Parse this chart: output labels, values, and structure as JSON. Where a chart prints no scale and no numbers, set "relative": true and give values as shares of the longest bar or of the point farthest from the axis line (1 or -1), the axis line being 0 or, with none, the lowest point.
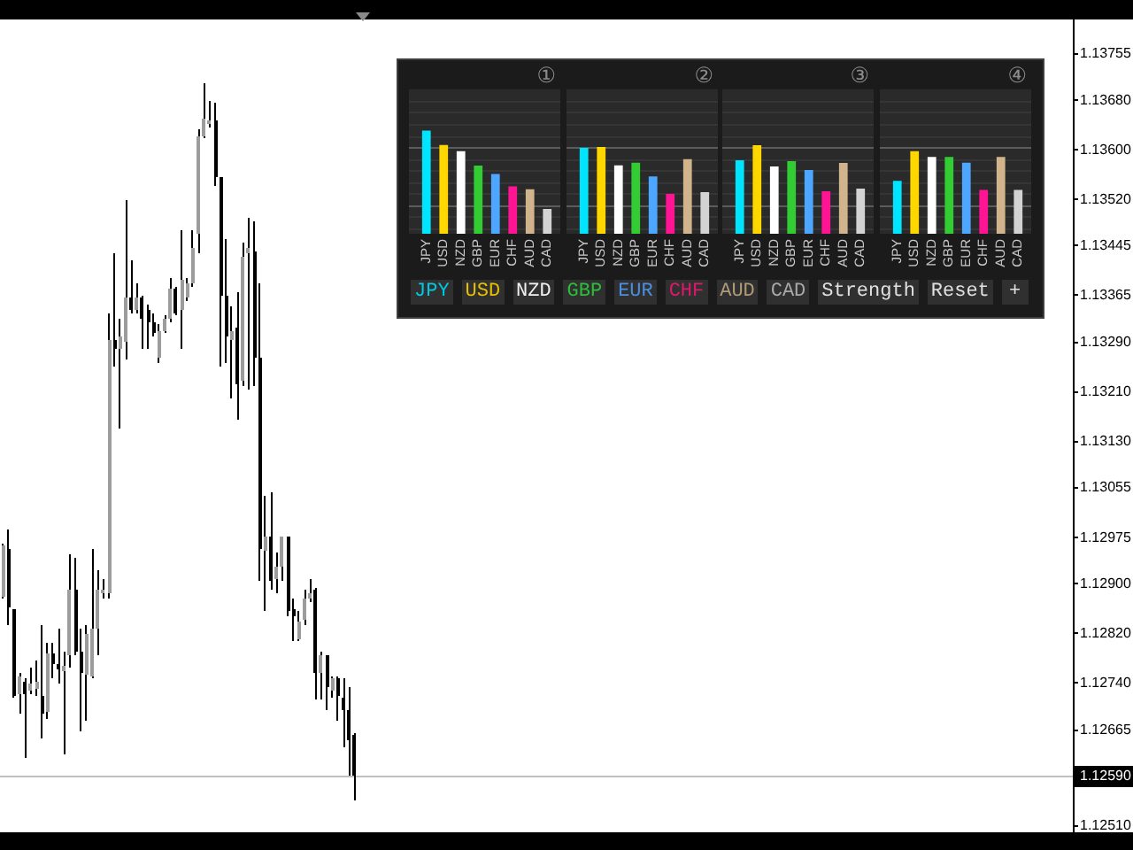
{
  "chart_data": [
    {
      "type": "candlestick",
      "categories": [
        null,
        null,
        null,
        null,
        null,
        null,
        null,
        null,
        null,
        null,
        null,
        null,
        null,
        null,
        null,
        null,
        null,
        null,
        null,
        null,
        null,
        null,
        null,
        null,
        null,
        null,
        null,
        null,
        null,
        null,
        null,
        null,
        null,
        null,
        null,
        null,
        null,
        null,
        null,
        null,
        null,
        null,
        null,
        null,
        null,
        null,
        null,
        null,
        null,
        null,
        null,
        null,
        null,
        null,
        null,
        null,
        null,
        null,
        null,
        null,
        null,
        null,
        null,
        null,
        null,
        null,
        null,
        null,
        null,
        null,
        null,
        null,
        null,
        null,
        null,
        null,
        null,
        null,
        null,
        null,
        null,
        null,
        null,
        null,
        null,
        null,
        null,
        null,
        null,
        null,
        null,
        null,
        null,
        null,
        null,
        null,
        null,
        null,
        null,
        null,
        null,
        null,
        null,
        null,
        null,
        null,
        null,
        null,
        null,
        null,
        null,
        null,
        null,
        null,
        null,
        null,
        null,
        null,
        null,
        null,
        null,
        null,
        null,
        null,
        null,
        null,
        null,
        null,
        null,
        null,
        null,
        null,
        null,
        null,
        null,
        null,
        null,
        null,
        null,
        null,
        null,
        null,
        null,
        null,
        null,
        null,
        null,
        null,
        null,
        null,
        null,
        null,
        null,
        null,
        null,
        null,
        null,
        null,
        null,
        null,
        null,
        null,
        null,
        null,
        null,
        null,
        null,
        null,
        null,
        null,
        null,
        null,
        null,
        null,
        null,
        null,
        null,
        null,
        null,
        null,
        null,
        null,
        null,
        null,
        null,
        null,
        null,
        null,
        null,
        null,
        null,
        null
      ],
      "ohlc": [
        [
          1.12878,
          1.12964,
          1.12876,
          1.12961
        ],
        [
          1.12956,
          1.12987,
          1.12833,
          1.12861
        ],
        [
          1.12861,
          1.12861,
          1.12718,
          1.12721
        ],
        [
          1.12721,
          1.12756,
          1.1269,
          1.1275
        ],
        [
          1.12744,
          1.12747,
          1.12621,
          1.12724
        ],
        [
          1.12727,
          1.12764,
          1.12724,
          1.12739
        ],
        [
          1.12733,
          1.12778,
          1.12721,
          1.12744
        ],
        [
          1.12721,
          1.12833,
          1.1265,
          1.12693
        ],
        [
          1.12693,
          1.12804,
          1.12684,
          1.12787
        ],
        [
          1.12787,
          1.12804,
          1.12747,
          1.1277
        ],
        [
          1.1277,
          1.12827,
          1.12739,
          1.12761
        ],
        [
          1.12758,
          1.1279,
          1.12627,
          1.12767
        ],
        [
          1.12784,
          1.12947,
          1.12764,
          1.1289
        ],
        [
          1.1289,
          1.12941,
          1.12784,
          1.1279
        ],
        [
          1.1279,
          1.12827,
          1.12664,
          1.12756
        ],
        [
          1.12756,
          1.12833,
          1.12679,
          1.12821
        ],
        [
          1.1275,
          1.12956,
          1.12747,
          1.12827
        ],
        [
          1.12827,
          1.12921,
          1.12784,
          1.1289
        ],
        [
          1.12884,
          1.12907,
          1.12878,
          1.1289
        ],
        [
          1.12884,
          1.13335,
          1.12878,
          1.13292
        ],
        [
          1.13292,
          1.13432,
          1.1325,
          1.13278
        ],
        [
          1.13278,
          1.13327,
          1.1315,
          1.13298
        ],
        [
          1.1329,
          1.13518,
          1.13261,
          1.13361
        ],
        [
          1.13361,
          1.13421,
          1.13335,
          1.13341
        ],
        [
          1.13341,
          1.13384,
          1.13335,
          1.13361
        ],
        [
          1.13361,
          1.13364,
          1.13278,
          1.13327
        ],
        [
          1.13341,
          1.1335,
          1.13278,
          1.13321
        ],
        [
          1.13321,
          1.13335,
          1.13298,
          1.13304
        ],
        [
          1.13264,
          1.13318,
          1.13255,
          1.13307
        ],
        [
          1.13307,
          1.13332,
          1.13304,
          1.13327
        ],
        [
          1.13327,
          1.13392,
          1.13321,
          1.13375
        ],
        [
          1.13375,
          1.13378,
          1.13332,
          1.13335
        ],
        [
          1.13341,
          1.1347,
          1.13278,
          1.1339
        ],
        [
          1.13361,
          1.13392,
          1.13355,
          1.13384
        ],
        [
          1.13384,
          1.1347,
          1.13378,
          1.13441
        ],
        [
          1.13464,
          1.13632,
          1.13432,
          1.13621
        ],
        [
          1.13621,
          1.13707,
          1.13618,
          1.13649
        ],
        [
          1.13641,
          1.13678,
          1.13635,
          1.13647
        ],
        [
          1.13647,
          1.13675,
          1.13541,
          1.13555
        ],
        [
          1.13555,
          1.13555,
          1.1325,
          1.13364
        ],
        [
          1.13364,
          1.13455,
          1.13255,
          1.13298
        ],
        [
          1.13292,
          1.13347,
          1.13198,
          1.13307
        ],
        [
          1.13312,
          1.1337,
          1.13164,
          1.13221
        ],
        [
          1.13227,
          1.1345,
          1.13218,
          1.13427
        ],
        [
          1.13432,
          1.13489,
          1.13213,
          1.13441
        ],
        [
          1.13435,
          1.13484,
          1.13218,
          1.13264
        ],
        [
          1.13264,
          1.13384,
          1.12904,
          1.12956
        ],
        [
          1.12956,
          1.13041,
          1.12856,
          1.12978
        ],
        [
          1.12978,
          1.13047,
          1.1289,
          1.12907
        ],
        [
          1.12907,
          1.1295,
          1.12884,
          1.12927
        ],
        [
          1.12927,
          1.12978,
          1.12904,
          1.12976
        ],
        [
          1.12976,
          1.12976,
          1.12847,
          1.12856
        ],
        [
          1.12861,
          1.12876,
          1.12807,
          1.1285
        ],
        [
          1.12813,
          1.12856,
          1.12807,
          1.12841
        ],
        [
          1.12841,
          1.1289,
          1.12833,
          1.12876
        ],
        [
          1.12876,
          1.12907,
          1.1287,
          1.12884
        ],
        [
          1.1289,
          1.12893,
          1.12713,
          1.12756
        ],
        [
          1.12756,
          1.1279,
          1.12713,
          1.12784
        ],
        [
          1.12784,
          1.12784,
          1.12698,
          1.12733
        ],
        [
          1.12727,
          1.1275,
          1.12718,
          1.12747
        ],
        [
          1.12747,
          1.1275,
          1.12679,
          1.12718
        ],
        [
          1.12718,
          1.12747,
          1.12636,
          1.12698
        ],
        [
          1.12698,
          1.12733,
          1.1259,
          1.1265
        ],
        [
          1.12656,
          1.12661,
          1.1255,
          1.1259
        ],
        null,
        null,
        null,
        null,
        null,
        null,
        null,
        null,
        null,
        null,
        null,
        null,
        null,
        null,
        null,
        null,
        null,
        null,
        null,
        null,
        null,
        null,
        null,
        null,
        null,
        null,
        null,
        null,
        null,
        null,
        null,
        null,
        null,
        null,
        null,
        null,
        null,
        null,
        null,
        null,
        null,
        null,
        null,
        null,
        null,
        null,
        null,
        null,
        null,
        null,
        null,
        null,
        null,
        null,
        null,
        null,
        null,
        null,
        null,
        null,
        null,
        null,
        null,
        null,
        null,
        null,
        null,
        null,
        null,
        null,
        null,
        null,
        null,
        null,
        null,
        null,
        null,
        null,
        null,
        null,
        null,
        null,
        null,
        null,
        null,
        null,
        null,
        null,
        null,
        null,
        null,
        null,
        null,
        null,
        null,
        null,
        null,
        null,
        null,
        null,
        null,
        null,
        null,
        null,
        null,
        null,
        null,
        null,
        null,
        null,
        null,
        null,
        null,
        null,
        null,
        null,
        null,
        null,
        null,
        null,
        null,
        null,
        null,
        null,
        null,
        null,
        null,
        null
      ],
      "ylim": [
        1.125,
        1.1381
      ],
      "yticks": [
        1.13755,
        {
          "value": 1.1368,
          "label": "1.13680"
        },
        {
          "value": 1.136,
          "label": "1.13600"
        },
        {
          "value": 1.1352,
          "label": "1.13520"
        },
        1.13445,
        1.13365,
        {
          "value": 1.1329,
          "label": "1.13290"
        },
        {
          "value": 1.1321,
          "label": "1.13210"
        },
        {
          "value": 1.1313,
          "label": "1.13130"
        },
        1.13055,
        1.12975,
        {
          "value": 1.129,
          "label": "1.12900"
        },
        {
          "value": 1.1282,
          "label": "1.12820"
        },
        {
          "value": 1.1274,
          "label": "1.12740"
        },
        1.12665,
        {
          "value": 1.1251,
          "label": "1.12510"
        }
      ],
      "ref_lines": [
        {
          "axis": "y",
          "value": 1.1259,
          "label": "1.12590",
          "color": "#c0c0c0"
        }
      ]
    },
    {
      "type": "bar",
      "title": "①",
      "categories": [
        "JPY",
        "USD",
        "NZD",
        "GBP",
        "EUR",
        "CHF",
        "AUD",
        "CAD"
      ],
      "values": [
        1,
        0.86,
        0.8,
        0.66,
        0.58,
        0.46,
        0.43,
        0.24
      ],
      "colors": [
        "#00e5ff",
        "#ffd700",
        "#ffffff",
        "#32cd32",
        "#4da6ff",
        "#ff1493",
        "#d2b48c",
        "#d3d3d3"
      ],
      "relative": true,
      "grid": true,
      "ref_lines": [
        {
          "axis": "y",
          "value": 0.84,
          "color": "#5c5c5c"
        },
        {
          "axis": "y",
          "value": 0.28,
          "color": "#5c5c5c"
        }
      ]
    },
    {
      "type": "bar",
      "title": "②",
      "categories": [
        "JPY",
        "USD",
        "NZD",
        "GBP",
        "EUR",
        "CHF",
        "AUD",
        "CAD"
      ],
      "values": [
        0.99,
        1,
        0.79,
        0.82,
        0.66,
        0.46,
        0.86,
        0.48
      ],
      "colors": [
        "#00e5ff",
        "#ffd700",
        "#ffffff",
        "#32cd32",
        "#4da6ff",
        "#ff1493",
        "#d2b48c",
        "#d3d3d3"
      ],
      "relative": true,
      "grid": true,
      "ref_lines": [
        {
          "axis": "y",
          "value": 1,
          "color": "#5c5c5c"
        },
        {
          "axis": "y",
          "value": 0.33,
          "color": "#5c5c5c"
        }
      ]
    },
    {
      "type": "bar",
      "title": "③",
      "categories": [
        "JPY",
        "USD",
        "NZD",
        "GBP",
        "EUR",
        "CHF",
        "AUD",
        "CAD"
      ],
      "values": [
        0.83,
        1,
        0.76,
        0.82,
        0.72,
        0.48,
        0.8,
        0.51
      ],
      "colors": [
        "#00e5ff",
        "#ffd700",
        "#ffffff",
        "#32cd32",
        "#4da6ff",
        "#ff1493",
        "#d2b48c",
        "#d3d3d3"
      ],
      "relative": true,
      "grid": true,
      "ref_lines": [
        {
          "axis": "y",
          "value": 0.98,
          "color": "#5c5c5c"
        },
        {
          "axis": "y",
          "value": 0.32,
          "color": "#5c5c5c"
        }
      ]
    },
    {
      "type": "bar",
      "title": "④",
      "categories": [
        "JPY",
        "USD",
        "NZD",
        "GBP",
        "EUR",
        "CHF",
        "AUD",
        "CAD"
      ],
      "values": [
        0.64,
        1,
        0.93,
        0.93,
        0.86,
        0.53,
        0.93,
        0.53
      ],
      "colors": [
        "#00e5ff",
        "#ffd700",
        "#ffffff",
        "#32cd32",
        "#4da6ff",
        "#ff1493",
        "#d2b48c",
        "#d3d3d3"
      ],
      "relative": true,
      "grid": true,
      "ref_lines": [
        {
          "axis": "y",
          "value": 1.05,
          "color": "#5c5c5c"
        },
        {
          "axis": "y",
          "value": 0.35,
          "color": "#5c5c5c"
        }
      ]
    },
    {
      "type": "other",
      "annotations": [
        "JPY",
        "USD",
        "NZD",
        "GBP",
        "EUR",
        "CHF",
        "AUD",
        "CAD",
        "Strength",
        "Reset",
        "+"
      ],
      "colors": [
        "#00c8e0",
        "#e8c000",
        "#f0f0f0",
        "#2ebd3a",
        "#4a8fe0",
        "#e0186c",
        "#b09a78",
        "#a8a8a8",
        "#e0e0e0",
        "#e0e0e0",
        "#e0e0e0"
      ]
    }
  ]
}
